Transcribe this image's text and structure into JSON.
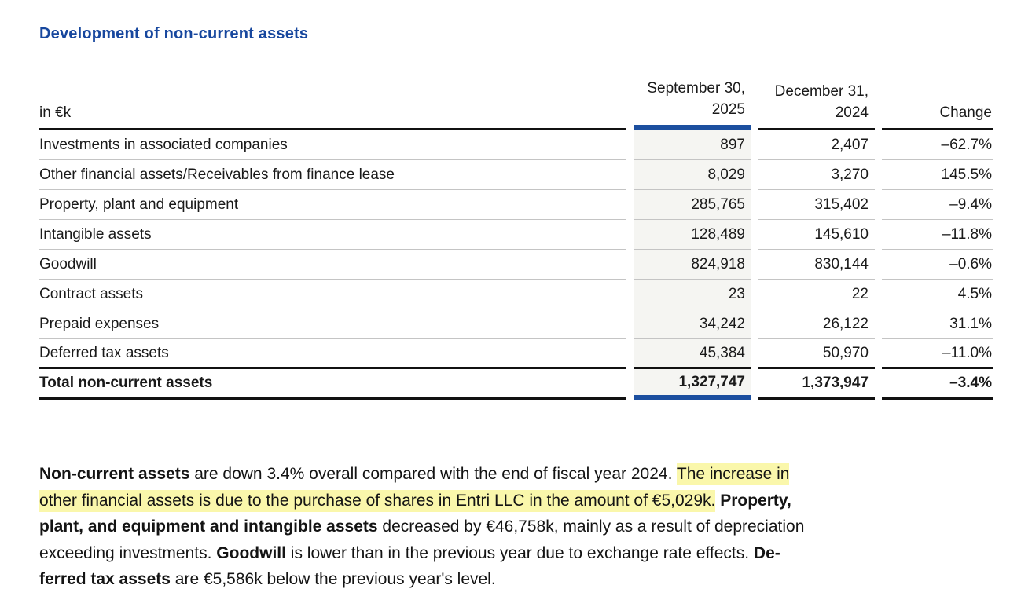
{
  "title": "Development of non-current assets",
  "colors": {
    "title_blue": "#17479e",
    "accent_bar_blue": "#1c4f9f",
    "highlight_yellow": "#faf7ab",
    "current_column_bg": "#f5f5f2",
    "rule_black": "#111111",
    "rule_gray": "#c4c4c4"
  },
  "table": {
    "unit_label": "in €k",
    "col_2025": {
      "line1": "September 30,",
      "line2": "2025"
    },
    "col_2024": {
      "line1": "December 31,",
      "line2": "2024"
    },
    "change_label": "Change",
    "rows": [
      {
        "label": "Investments in associated companies",
        "v2025": "897",
        "v2024": "2,407",
        "change": "–62.7%"
      },
      {
        "label": "Other financial assets/Receivables from finance lease",
        "v2025": "8,029",
        "v2024": "3,270",
        "change": "145.5%"
      },
      {
        "label": "Property, plant and equipment",
        "v2025": "285,765",
        "v2024": "315,402",
        "change": "–9.4%"
      },
      {
        "label": "Intangible assets",
        "v2025": "128,489",
        "v2024": "145,610",
        "change": "–11.8%"
      },
      {
        "label": "Goodwill",
        "v2025": "824,918",
        "v2024": "830,144",
        "change": "–0.6%"
      },
      {
        "label": "Contract assets",
        "v2025": "23",
        "v2024": "22",
        "change": "4.5%"
      },
      {
        "label": "Prepaid expenses",
        "v2025": "34,242",
        "v2024": "26,122",
        "change": "31.1%"
      },
      {
        "label": "Deferred tax assets",
        "v2025": "45,384",
        "v2024": "50,970",
        "change": "–11.0%"
      }
    ],
    "total": {
      "label": "Total non-current assets",
      "v2025": "1,327,747",
      "v2024": "1,373,947",
      "change": "–3.4%"
    }
  },
  "paragraph": {
    "line1": {
      "s1": "Non-current assets",
      "s2": " are down 3.4% overall compared with the end of fiscal year 2024. ",
      "s3": "The increase in"
    },
    "line2": {
      "s1": "other financial assets is due to the purchase of shares in Entri LLC in the amount of €5,029k.",
      "s2": " ",
      "s3": "Property,"
    },
    "line3": {
      "s1": "plant, and equipment and intangible assets",
      "s2": " decreased by €46,758k, mainly as a result of depreciation"
    },
    "line4": {
      "s1": "exceeding investments. ",
      "s2": "Goodwill",
      "s3": " is lower than in the previous year due to exchange rate effects. ",
      "s4": "De-"
    },
    "line5": {
      "s1": "ferred tax assets",
      "s2": " are €5,586k below the previous year's level."
    }
  }
}
